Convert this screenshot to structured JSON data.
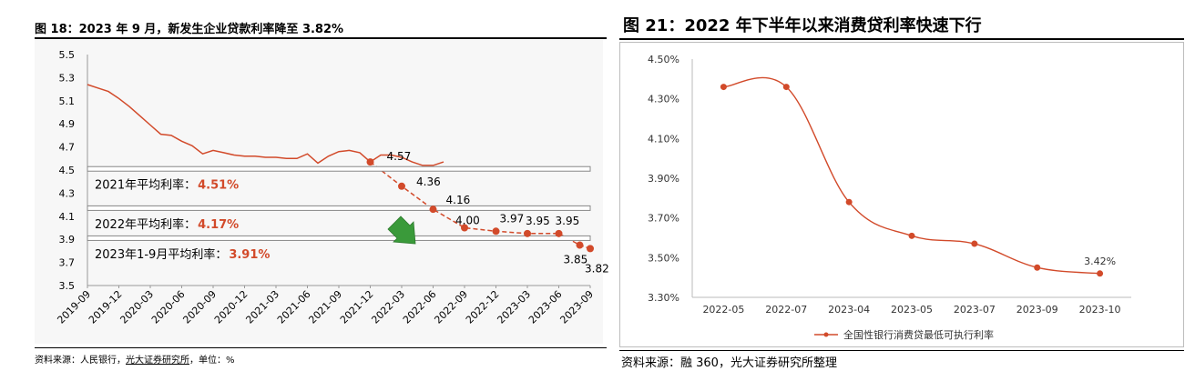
{
  "left": {
    "title": "图 18：2023 年 9 月，新发生企业贷款利率降至 3.82%",
    "source_parts": [
      "资料来源：人民银行，",
      "光大证券研究所",
      "，单位：%"
    ],
    "chart_data": {
      "type": "line",
      "ylim": [
        3.5,
        5.5
      ],
      "yticks": [
        "5.5",
        "5.3",
        "5.1",
        "4.9",
        "4.7",
        "4.5",
        "4.3",
        "4.1",
        "3.9",
        "3.7",
        "3.5"
      ],
      "xticks": [
        "2019-09",
        "2019-12",
        "2020-03",
        "2020-06",
        "2020-09",
        "2020-12",
        "2021-03",
        "2021-06",
        "2021-09",
        "2021-12",
        "2022-03",
        "2022-06",
        "2022-09",
        "2022-12",
        "2023-03",
        "2023-06",
        "2023-09"
      ],
      "series": [
        {
          "values": [
            5.24,
            5.21,
            5.18,
            5.12,
            5.05,
            4.97,
            4.89,
            4.81,
            4.8,
            4.75,
            4.71,
            4.64,
            4.67,
            4.65,
            4.63,
            4.62,
            4.62,
            4.61,
            4.61,
            4.6,
            4.6,
            4.64,
            4.56,
            4.62,
            4.66,
            4.67,
            4.65,
            4.57,
            4.63,
            4.63,
            4.61,
            4.57,
            4.54,
            4.54,
            4.57
          ],
          "color": "#d24a2a"
        }
      ],
      "markers": [
        {
          "x": "2021-12",
          "y": 4.57,
          "label": "4.57"
        },
        {
          "x": "2022-03",
          "y": 4.36,
          "label": "4.36"
        },
        {
          "x": "2022-06",
          "y": 4.16,
          "label": "4.16"
        },
        {
          "x": "2022-09",
          "y": 4.0,
          "label": "4.00"
        },
        {
          "x": "2022-12",
          "y": 3.97,
          "label": "3.97"
        },
        {
          "x": "2023-03",
          "y": 3.95,
          "label": "3.95"
        },
        {
          "x": "2023-06",
          "y": 3.95,
          "label": "3.95"
        },
        {
          "x": "2023-08",
          "y": 3.85,
          "label": "3.85"
        },
        {
          "x": "2023-09",
          "y": 3.82,
          "label": "3.82"
        }
      ],
      "reference_bands": [
        {
          "y": 4.51,
          "label": "2021年平均利率：",
          "value": "4.51%"
        },
        {
          "y": 4.17,
          "label": "2022年平均利率：",
          "value": "4.17%"
        },
        {
          "y": 3.91,
          "label": "2023年1-9月平均利率：",
          "value": "3.91%"
        }
      ],
      "grid": false
    }
  },
  "right": {
    "title": "图 21：2022 年下半年以来消费贷利率快速下行",
    "source": "资料来源：融 360，光大证券研究所整理",
    "chart_data": {
      "type": "line",
      "ylim": [
        3.3,
        4.5
      ],
      "yticks": [
        "4.50%",
        "4.30%",
        "4.10%",
        "3.90%",
        "3.70%",
        "3.50%",
        "3.30%"
      ],
      "categories": [
        "2022-05",
        "2022-07",
        "2023-04",
        "2023-05",
        "2023-07",
        "2023-09",
        "2023-10"
      ],
      "series": [
        {
          "name": "全国性银行消费贷最低可执行利率",
          "values": [
            4.36,
            4.36,
            3.78,
            3.61,
            3.57,
            3.45,
            3.42
          ],
          "color": "#d24a2a"
        }
      ],
      "data_labels": [
        {
          "index": 6,
          "text": "3.42%"
        }
      ],
      "legend": "bottom",
      "grid": false
    }
  },
  "colors": {
    "accent": "#d24a2a",
    "arrow": "#3a9a3a"
  }
}
